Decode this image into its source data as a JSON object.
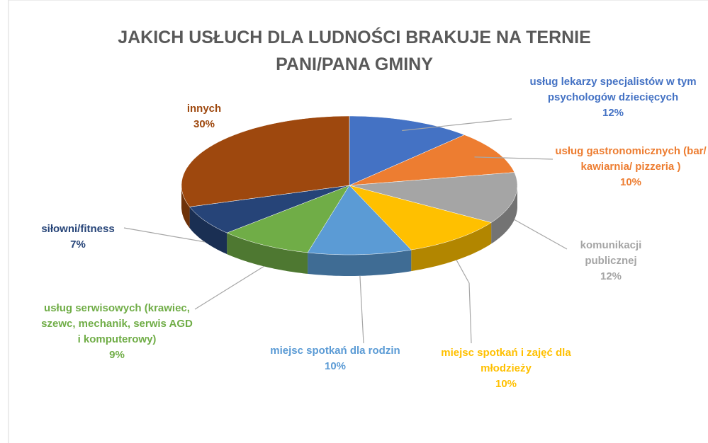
{
  "chart_data": {
    "type": "pie3d",
    "title": "JAKICH USŁUCH DLA LUDNOŚCI BRAKUJE NA TERNIE PANI/PANA GMINY",
    "categories": [
      "usług lekarzy specjalistów w tym psychologów dziecięcych",
      "usług gastronomicznych (bar/ kawiarnia/ pizzeria )",
      "komunikacji publicznej",
      "miejsc spotkań i zajęć dla młodzieży",
      "miejsc spotkań dla rodzin",
      "usług serwisowych (krawiec, szewc, mechanik, serwis AGD i komputerowy)",
      "siłowni/fitness",
      "innych"
    ],
    "values": [
      12,
      10,
      12,
      10,
      10,
      9,
      7,
      30
    ],
    "value_labels": [
      "12%",
      "10%",
      "12%",
      "10%",
      "10%",
      "9%",
      "7%",
      "30%"
    ],
    "colors": [
      "#4472c4",
      "#ed7d31",
      "#a5a5a5",
      "#ffc000",
      "#5b9bd5",
      "#70ad47",
      "#264478",
      "#9e480e"
    ]
  }
}
